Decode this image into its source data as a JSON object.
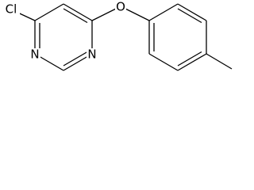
{
  "atoms": [
    {
      "label": "Cl"
    },
    {
      "label": "N"
    },
    {
      "label": "N"
    },
    {
      "label": "O"
    }
  ]
}
